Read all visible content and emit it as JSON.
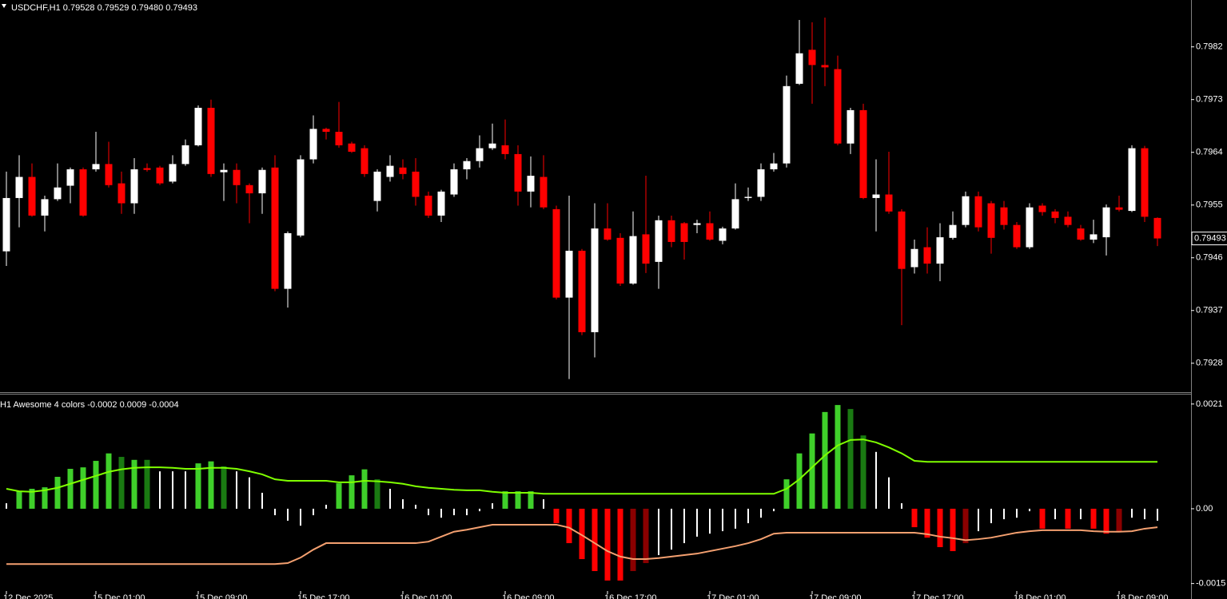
{
  "chart_data": [
    {
      "type": "candlestick",
      "title": "USDCHF,H1  0.79528 0.79529 0.79480 0.79493",
      "up_color": "#ffffff",
      "down_color": "#ff0000",
      "ylim": [
        0.79232,
        0.799
      ],
      "yticks": [
        0.7982,
        0.7973,
        0.7964,
        0.7955,
        0.7946,
        0.7937,
        0.7928
      ],
      "open": [
        0.79471,
        0.79562,
        0.79598,
        0.79532,
        0.7956,
        0.79583,
        0.79611,
        0.79611,
        0.7962,
        0.79587,
        0.79553,
        0.79613,
        0.79614,
        0.7959,
        0.7962,
        0.79652,
        0.79716,
        0.79606,
        0.7961,
        0.79584,
        0.7957,
        0.79614,
        0.79407,
        0.79498,
        0.79628,
        0.7968,
        0.79675,
        0.79655,
        0.79647,
        0.79557,
        0.79598,
        0.79614,
        0.79607,
        0.79566,
        0.79532,
        0.79568,
        0.79611,
        0.79625,
        0.79647,
        0.79652,
        0.79637,
        0.79573,
        0.79598,
        0.79543,
        0.79392,
        0.79472,
        0.79333,
        0.7951,
        0.79494,
        0.79416,
        0.795,
        0.79453,
        0.79524,
        0.79519,
        0.79516,
        0.79519,
        0.79489,
        0.7951,
        0.79562,
        0.79564,
        0.79611,
        0.79621,
        0.79757,
        0.79815,
        0.79789,
        0.79782,
        0.79655,
        0.79712,
        0.79562,
        0.79568,
        0.79539,
        0.79444,
        0.79478,
        0.7945,
        0.79494,
        0.79516,
        0.79565,
        0.79553,
        0.79546,
        0.79516,
        0.79478,
        0.79549,
        0.79539,
        0.7953,
        0.7951,
        0.79491,
        0.79495,
        0.79546,
        0.7954,
        0.79647,
        0.79528
      ],
      "high": [
        0.79607,
        0.79635,
        0.79621,
        0.79566,
        0.79621,
        0.79614,
        0.79614,
        0.79675,
        0.79658,
        0.79607,
        0.7963,
        0.79621,
        0.79617,
        0.79635,
        0.79662,
        0.7972,
        0.7973,
        0.79621,
        0.79621,
        0.79587,
        0.79614,
        0.79635,
        0.79505,
        0.79635,
        0.79703,
        0.79682,
        0.79726,
        0.79658,
        0.79652,
        0.79611,
        0.79635,
        0.79628,
        0.7963,
        0.79573,
        0.79576,
        0.79621,
        0.7963,
        0.79669,
        0.79689,
        0.79696,
        0.79652,
        0.79633,
        0.79635,
        0.79549,
        0.79566,
        0.79475,
        0.79553,
        0.79553,
        0.79502,
        0.79539,
        0.796,
        0.79532,
        0.79532,
        0.79521,
        0.79525,
        0.79539,
        0.79513,
        0.79587,
        0.7958,
        0.79621,
        0.79639,
        0.79771,
        0.79866,
        0.79862,
        0.7987,
        0.79805,
        0.79716,
        0.79723,
        0.79628,
        0.79641,
        0.79543,
        0.79491,
        0.79512,
        0.79519,
        0.79539,
        0.79573,
        0.79573,
        0.79557,
        0.79557,
        0.79521,
        0.79553,
        0.79553,
        0.79543,
        0.79539,
        0.79516,
        0.79525,
        0.79551,
        0.79566,
        0.79652,
        0.79651,
        0.79529
      ],
      "low": [
        0.79446,
        0.79512,
        0.7953,
        0.79505,
        0.79557,
        0.79553,
        0.7953,
        0.79607,
        0.7958,
        0.79535,
        0.79535,
        0.79607,
        0.79584,
        0.79587,
        0.79617,
        0.7965,
        0.79598,
        0.79557,
        0.79553,
        0.79519,
        0.79535,
        0.79403,
        0.79375,
        0.79495,
        0.79621,
        0.79662,
        0.79648,
        0.79639,
        0.79598,
        0.79539,
        0.7959,
        0.79594,
        0.79549,
        0.79528,
        0.79521,
        0.79564,
        0.79594,
        0.79614,
        0.79644,
        0.79628,
        0.79549,
        0.79546,
        0.79543,
        0.79389,
        0.79253,
        0.79328,
        0.7929,
        0.79489,
        0.79412,
        0.79414,
        0.79434,
        0.79407,
        0.79478,
        0.79457,
        0.79502,
        0.79489,
        0.79483,
        0.79508,
        0.79557,
        0.79557,
        0.79607,
        0.79614,
        0.79755,
        0.79723,
        0.79753,
        0.79652,
        0.79637,
        0.7956,
        0.79505,
        0.79535,
        0.79345,
        0.79433,
        0.79433,
        0.7942,
        0.79491,
        0.79512,
        0.79505,
        0.79467,
        0.79508,
        0.79475,
        0.79475,
        0.79532,
        0.79519,
        0.79512,
        0.79489,
        0.79485,
        0.79464,
        0.79539,
        0.79538,
        0.79521,
        0.7948
      ],
      "close": [
        0.79562,
        0.79598,
        0.79532,
        0.7956,
        0.7958,
        0.79611,
        0.79532,
        0.7962,
        0.79584,
        0.79553,
        0.79611,
        0.7961,
        0.79587,
        0.7962,
        0.79652,
        0.79716,
        0.79603,
        0.7961,
        0.79584,
        0.7957,
        0.7961,
        0.79407,
        0.79502,
        0.79628,
        0.7968,
        0.79675,
        0.79652,
        0.79641,
        0.79603,
        0.79607,
        0.79617,
        0.79603,
        0.79564,
        0.79532,
        0.79573,
        0.79611,
        0.79625,
        0.79647,
        0.79655,
        0.79637,
        0.79573,
        0.796,
        0.79546,
        0.79392,
        0.79472,
        0.79333,
        0.7951,
        0.79491,
        0.79416,
        0.79497,
        0.7945,
        0.79524,
        0.79487,
        0.79487,
        0.79519,
        0.79491,
        0.7951,
        0.7956,
        0.79564,
        0.79611,
        0.79621,
        0.79753,
        0.79809,
        0.79789,
        0.79785,
        0.79655,
        0.79712,
        0.79562,
        0.79568,
        0.79539,
        0.79441,
        0.79475,
        0.7945,
        0.79495,
        0.79516,
        0.79565,
        0.79512,
        0.79494,
        0.79516,
        0.79478,
        0.79546,
        0.79538,
        0.79528,
        0.79516,
        0.79491,
        0.795,
        0.79546,
        0.79542,
        0.79647,
        0.7953,
        0.79493
      ]
    },
    {
      "type": "oscillator",
      "title": "H1 Awesome 4 colors -0.0002 0.0009 -0.0004",
      "ylim": [
        -0.00165,
        0.00229
      ],
      "yticks": [
        0.0021,
        {
          "value": 0,
          "label": "0.00"
        },
        -0.0015
      ],
      "categories": [
        "12 Dec 2025",
        null,
        null,
        null,
        null,
        null,
        null,
        "15 Dec 01:00",
        null,
        null,
        null,
        null,
        null,
        null,
        null,
        "15 Dec 09:00",
        null,
        null,
        null,
        null,
        null,
        null,
        null,
        "15 Dec 17:00",
        null,
        null,
        null,
        null,
        null,
        null,
        null,
        "16 Dec 01:00",
        null,
        null,
        null,
        null,
        null,
        null,
        null,
        "16 Dec 09:00",
        null,
        null,
        null,
        null,
        null,
        null,
        null,
        "16 Dec 17:00",
        null,
        null,
        null,
        null,
        null,
        null,
        null,
        "17 Dec 01:00",
        null,
        null,
        null,
        null,
        null,
        null,
        null,
        "17 Dec 09:00",
        null,
        null,
        null,
        null,
        null,
        null,
        null,
        "17 Dec 17:00",
        null,
        null,
        null,
        null,
        null,
        null,
        null,
        "18 Dec 01:00",
        null,
        null,
        null,
        null,
        null,
        null,
        null,
        "18 Dec 09:00",
        null,
        null,
        null
      ],
      "histogram": {
        "values": [
          0.00011,
          0.00035,
          0.0004,
          0.00043,
          0.00064,
          0.0008,
          0.00083,
          0.00096,
          0.00111,
          0.00104,
          0.00098,
          0.00098,
          0.00075,
          0.00075,
          0.00075,
          0.00091,
          0.00095,
          0.00085,
          0.00075,
          0.00063,
          0.00032,
          -0.00013,
          -0.00024,
          -0.00034,
          -0.00013,
          8e-05,
          0.00051,
          0.00067,
          0.00079,
          0.00059,
          0.0004,
          0.00019,
          8e-05,
          -0.00013,
          -0.00018,
          -0.00013,
          -0.00013,
          -5e-05,
          0.00011,
          0.00035,
          0.00035,
          0.00035,
          0.00019,
          -0.00029,
          -0.00069,
          -0.00101,
          -0.00125,
          -0.00144,
          -0.00144,
          -0.00125,
          -0.00109,
          -0.00093,
          -0.00082,
          -0.00069,
          -0.00056,
          -0.0005,
          -0.00045,
          -0.0004,
          -0.00029,
          -0.00018,
          -5e-05,
          0.00059,
          0.00111,
          0.00151,
          0.00194,
          0.00208,
          0.002,
          0.00147,
          0.00114,
          0.00063,
          0.00011,
          -0.00037,
          -0.00058,
          -0.00077,
          -0.00085,
          -0.00069,
          -0.00045,
          -0.00029,
          -0.00021,
          -0.00018,
          -5e-05,
          -0.0004,
          -0.00021,
          -0.0004,
          -0.00021,
          -0.0004,
          -0.0005,
          -0.00046,
          -0.00018,
          -0.00021,
          -0.00024
        ],
        "colors": [
          "#ffffff",
          "#3fcf2a",
          "#3fcf2a",
          "#3fcf2a",
          "#3fcf2a",
          "#3fcf2a",
          "#3fcf2a",
          "#3fcf2a",
          "#3fcf2a",
          "#1a7a12",
          "#3fcf2a",
          "#1a7a12",
          "#ffffff",
          "#ffffff",
          "#ffffff",
          "#3fcf2a",
          "#3fcf2a",
          "#1a7a12",
          "#ffffff",
          "#ffffff",
          "#ffffff",
          "#ffffff",
          "#ffffff",
          "#ffffff",
          "#ffffff",
          "#ffffff",
          "#3fcf2a",
          "#3fcf2a",
          "#3fcf2a",
          "#1a7a12",
          "#ffffff",
          "#ffffff",
          "#ffffff",
          "#ffffff",
          "#ffffff",
          "#ffffff",
          "#ffffff",
          "#ffffff",
          "#ffffff",
          "#3fcf2a",
          "#3fcf2a",
          "#3fcf2a",
          "#ffffff",
          "#ff0000",
          "#ff0000",
          "#ff0000",
          "#ff0000",
          "#ff0000",
          "#ff0000",
          "#8b0000",
          "#8b0000",
          "#ffffff",
          "#ffffff",
          "#ffffff",
          "#ffffff",
          "#ffffff",
          "#ffffff",
          "#ffffff",
          "#ffffff",
          "#ffffff",
          "#ffffff",
          "#3fcf2a",
          "#3fcf2a",
          "#3fcf2a",
          "#3fcf2a",
          "#3fcf2a",
          "#1a7a12",
          "#1a7a12",
          "#ffffff",
          "#ffffff",
          "#ffffff",
          "#ff0000",
          "#ff0000",
          "#ff0000",
          "#ff0000",
          "#8b0000",
          "#ffffff",
          "#ffffff",
          "#ffffff",
          "#ffffff",
          "#ffffff",
          "#ff0000",
          "#ffffff",
          "#ff0000",
          "#ffffff",
          "#ff0000",
          "#ff0000",
          "#8b0000",
          "#ffffff",
          "#ffffff",
          "#ffffff"
        ]
      },
      "series": [
        {
          "color": "#7fff00",
          "values": [
            0.0004,
            0.00035,
            0.00034,
            0.00037,
            0.00042,
            0.0005,
            0.00058,
            0.00066,
            0.00074,
            0.00079,
            0.00082,
            0.00083,
            0.00083,
            0.00082,
            0.0008,
            0.0008,
            0.00082,
            0.00082,
            0.0008,
            0.00075,
            0.00069,
            0.00059,
            0.00056,
            0.00056,
            0.00056,
            0.00056,
            0.00053,
            0.00053,
            0.00056,
            0.00055,
            0.00053,
            0.0005,
            0.00045,
            0.00042,
            0.0004,
            0.00038,
            0.00037,
            0.00037,
            0.00034,
            0.00032,
            0.00032,
            0.00032,
            0.0003,
            0.0003,
            0.0003,
            0.0003,
            0.0003,
            0.0003,
            0.0003,
            0.0003,
            0.0003,
            0.0003,
            0.0003,
            0.0003,
            0.0003,
            0.0003,
            0.0003,
            0.0003,
            0.0003,
            0.0003,
            0.0003,
            0.0004,
            0.00059,
            0.00083,
            0.00107,
            0.00127,
            0.00138,
            0.00139,
            0.00133,
            0.00123,
            0.00111,
            0.00096,
            0.00094,
            0.00094,
            0.00094,
            0.00094,
            0.00094,
            0.00094,
            0.00094,
            0.00094,
            0.00094,
            0.00094,
            0.00094,
            0.00094,
            0.00094,
            0.00094,
            0.00094,
            0.00094,
            0.00094,
            0.00094,
            0.00094
          ]
        },
        {
          "color": "#f4a070",
          "values": [
            -0.00111,
            -0.00111,
            -0.00111,
            -0.00111,
            -0.00111,
            -0.00111,
            -0.00111,
            -0.00111,
            -0.00111,
            -0.00111,
            -0.00111,
            -0.00111,
            -0.00111,
            -0.00111,
            -0.00111,
            -0.00111,
            -0.00111,
            -0.00111,
            -0.00111,
            -0.00111,
            -0.00111,
            -0.00111,
            -0.00109,
            -0.00098,
            -0.00082,
            -0.00069,
            -0.00069,
            -0.00069,
            -0.00069,
            -0.00069,
            -0.00069,
            -0.00069,
            -0.00069,
            -0.00066,
            -0.00056,
            -0.00046,
            -0.00042,
            -0.00037,
            -0.00032,
            -0.00032,
            -0.00032,
            -0.00032,
            -0.00032,
            -0.00032,
            -0.00038,
            -0.00053,
            -0.00069,
            -0.00085,
            -0.00096,
            -0.00101,
            -0.00101,
            -0.00099,
            -0.00096,
            -0.00093,
            -0.0009,
            -0.00085,
            -0.0008,
            -0.00075,
            -0.00069,
            -0.00061,
            -0.0005,
            -0.00048,
            -0.00048,
            -0.00048,
            -0.00048,
            -0.00048,
            -0.00048,
            -0.00048,
            -0.00048,
            -0.00048,
            -0.00048,
            -0.00048,
            -0.00051,
            -0.00056,
            -0.00059,
            -0.00063,
            -0.00061,
            -0.00058,
            -0.00053,
            -0.00048,
            -0.00045,
            -0.00043,
            -0.00043,
            -0.00043,
            -0.00043,
            -0.00045,
            -0.00046,
            -0.00046,
            -0.00045,
            -0.0004,
            -0.00037
          ]
        }
      ]
    }
  ]
}
